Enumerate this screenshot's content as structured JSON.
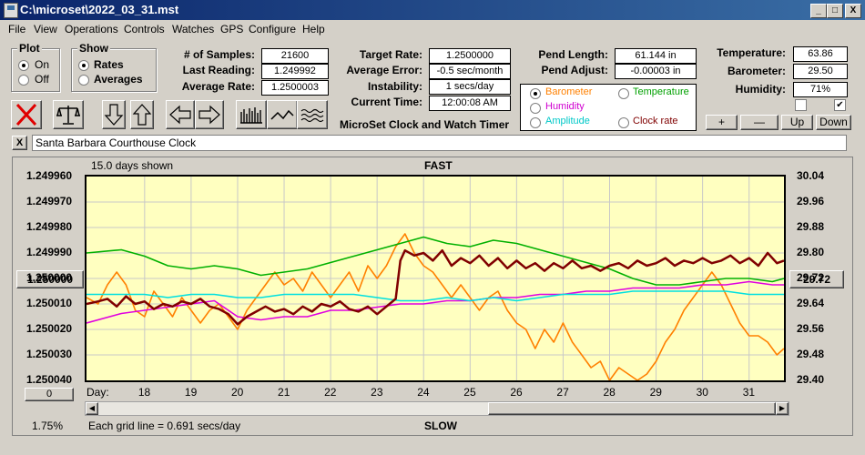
{
  "window": {
    "title": "C:\\microset\\2022_03_31.mst",
    "min": "_",
    "max": "□",
    "close": "X"
  },
  "menu": [
    "File",
    "View",
    "Operations",
    "Controls",
    "Watches",
    "GPS",
    "Configure",
    "Help"
  ],
  "plot_group": {
    "title": "Plot",
    "on": "On",
    "off": "Off",
    "selected": "On"
  },
  "show_group": {
    "title": "Show",
    "rates": "Rates",
    "averages": "Averages",
    "selected": "Rates"
  },
  "stats": {
    "samples_label": "# of Samples:",
    "samples": "21600",
    "last_label": "Last Reading:",
    "last": "1.249992",
    "avg_label": "Average Rate:",
    "avg": "1.2500003",
    "target_label": "Target Rate:",
    "target": "1.2500000",
    "avgerr_label": "Average Error:",
    "avgerr": "-0.5 sec/month",
    "instab_label": "Instability:",
    "instab": "1 secs/day",
    "time_label": "Current Time:",
    "time": "12:00:08 AM",
    "pendlen_label": "Pend Length:",
    "pendlen": "61.144 in",
    "pendadj_label": "Pend Adjust:",
    "pendadj": "-0.00003 in",
    "temp_label": "Temperature:",
    "temp": "63.86",
    "baro_label": "Barometer:",
    "baro": "29.50",
    "hum_label": "Humidity:",
    "hum": "71%"
  },
  "product_title": "MicroSet Clock and Watch Timer",
  "sensor_select": {
    "barometer": "Barometer",
    "temperature": "Temperature",
    "humidity": "Humidity",
    "amplitude": "Amplitude",
    "clockrate": "Clock rate",
    "selected": "barometer"
  },
  "aux_buttons": {
    "plus": "+",
    "minus": "—",
    "up": "Up",
    "down": "Down"
  },
  "checkboxes": {
    "left": false,
    "right": true
  },
  "description": "Santa Barbara Courthouse Clock",
  "close_x": "X",
  "chart_labels": {
    "days_shown": "15.0 days shown",
    "fast": "FAST",
    "slow": "SLOW",
    "day_label": "Day:",
    "grid_note": "Each grid line = 0.691 secs/day",
    "left_btn": "1.250000",
    "right_btn": "29.72",
    "bottom_btn": "0",
    "pct": "1.75%"
  },
  "colors": {
    "barometer": "#ff8000",
    "temperature": "#00b000",
    "humidity": "#e000e0",
    "amplitude": "#00e0e0",
    "rate": "#800000"
  },
  "chart_data": {
    "type": "line",
    "y_left_ticks": [
      "1.249960",
      "1.249970",
      "1.249980",
      "1.249990",
      "1.250000",
      "1.250010",
      "1.250020",
      "1.250030",
      "1.250040"
    ],
    "y_right_ticks": [
      "30.04",
      "29.96",
      "29.88",
      "29.80",
      "29.72",
      "29.64",
      "29.56",
      "29.48",
      "29.40"
    ],
    "x_ticks": [
      "18",
      "19",
      "20",
      "21",
      "22",
      "23",
      "24",
      "25",
      "26",
      "27",
      "28",
      "29",
      "30",
      "31"
    ],
    "ylim_left": [
      1.25004,
      1.24996
    ],
    "ylim_right": [
      29.4,
      30.04
    ],
    "x_range": [
      16.75,
      31.75
    ],
    "series": [
      {
        "name": "Barometer",
        "color": "#ff8000",
        "axis": "right",
        "x": [
          16.75,
          17,
          17.2,
          17.4,
          17.6,
          17.8,
          18,
          18.2,
          18.4,
          18.6,
          18.8,
          19,
          19.2,
          19.4,
          19.6,
          19.8,
          20,
          20.2,
          20.4,
          20.6,
          20.8,
          21,
          21.2,
          21.4,
          21.6,
          21.8,
          22,
          22.2,
          22.4,
          22.6,
          22.8,
          23,
          23.2,
          23.4,
          23.6,
          23.8,
          24,
          24.2,
          24.4,
          24.6,
          24.8,
          25,
          25.2,
          25.4,
          25.6,
          25.8,
          26,
          26.2,
          26.4,
          26.6,
          26.8,
          27,
          27.2,
          27.4,
          27.6,
          27.8,
          28,
          28.2,
          28.4,
          28.6,
          28.8,
          29,
          29.2,
          29.4,
          29.6,
          29.8,
          30,
          30.2,
          30.4,
          30.6,
          30.8,
          31,
          31.2,
          31.4,
          31.6,
          31.75
        ],
        "y": [
          29.66,
          29.64,
          29.7,
          29.74,
          29.7,
          29.62,
          29.6,
          29.68,
          29.64,
          29.6,
          29.66,
          29.62,
          29.58,
          29.62,
          29.64,
          29.6,
          29.56,
          29.62,
          29.66,
          29.7,
          29.74,
          29.7,
          29.72,
          29.68,
          29.74,
          29.7,
          29.66,
          29.7,
          29.74,
          29.68,
          29.76,
          29.72,
          29.76,
          29.82,
          29.86,
          29.8,
          29.76,
          29.74,
          29.7,
          29.66,
          29.7,
          29.66,
          29.62,
          29.66,
          29.68,
          29.62,
          29.58,
          29.56,
          29.5,
          29.56,
          29.52,
          29.58,
          29.52,
          29.48,
          29.44,
          29.46,
          29.4,
          29.44,
          29.42,
          29.4,
          29.42,
          29.46,
          29.52,
          29.56,
          29.62,
          29.66,
          29.7,
          29.74,
          29.7,
          29.64,
          29.58,
          29.54,
          29.54,
          29.52,
          29.48,
          29.5
        ]
      },
      {
        "name": "Temperature",
        "color": "#00b000",
        "axis": "right",
        "x": [
          16.75,
          17.5,
          18,
          18.5,
          19,
          19.5,
          20,
          20.5,
          21,
          21.5,
          22,
          22.5,
          23,
          23.5,
          24,
          24.5,
          25,
          25.5,
          26,
          26.5,
          27,
          27.5,
          28,
          28.5,
          29,
          29.5,
          30,
          30.5,
          31,
          31.5,
          31.75
        ],
        "y": [
          29.8,
          29.81,
          29.79,
          29.76,
          29.75,
          29.76,
          29.75,
          29.73,
          29.74,
          29.75,
          29.77,
          29.79,
          29.81,
          29.83,
          29.85,
          29.83,
          29.82,
          29.84,
          29.83,
          29.81,
          29.79,
          29.77,
          29.75,
          29.72,
          29.7,
          29.7,
          29.71,
          29.72,
          29.72,
          29.71,
          29.72
        ]
      },
      {
        "name": "Humidity",
        "color": "#e000e0",
        "axis": "right",
        "x": [
          16.75,
          17.5,
          18,
          18.5,
          19,
          19.5,
          20,
          20.5,
          21,
          21.5,
          22,
          22.5,
          23,
          23.5,
          24,
          24.5,
          25,
          25.5,
          26,
          26.5,
          27,
          27.5,
          28,
          28.5,
          29,
          29.5,
          30,
          30.5,
          31,
          31.5,
          31.75
        ],
        "y": [
          29.58,
          29.61,
          29.62,
          29.63,
          29.64,
          29.65,
          29.6,
          29.59,
          29.6,
          29.6,
          29.62,
          29.62,
          29.63,
          29.64,
          29.64,
          29.65,
          29.65,
          29.66,
          29.66,
          29.67,
          29.67,
          29.68,
          29.68,
          29.69,
          29.69,
          29.69,
          29.7,
          29.7,
          29.71,
          29.7,
          29.7
        ]
      },
      {
        "name": "Amplitude",
        "color": "#00e0e0",
        "axis": "right",
        "x": [
          16.75,
          17.5,
          18,
          18.5,
          19,
          19.5,
          20,
          20.5,
          21,
          21.5,
          22,
          22.5,
          23,
          23.5,
          24,
          24.5,
          25,
          25.5,
          26,
          26.5,
          27,
          27.5,
          28,
          28.5,
          29,
          29.5,
          30,
          30.5,
          31,
          31.5,
          31.75
        ],
        "y": [
          29.67,
          29.67,
          29.67,
          29.66,
          29.67,
          29.67,
          29.66,
          29.66,
          29.67,
          29.67,
          29.67,
          29.67,
          29.66,
          29.65,
          29.65,
          29.66,
          29.65,
          29.66,
          29.65,
          29.66,
          29.67,
          29.67,
          29.67,
          29.68,
          29.68,
          29.68,
          29.68,
          29.68,
          29.67,
          29.67,
          29.67
        ]
      },
      {
        "name": "Clock rate",
        "color": "#800000",
        "axis": "left",
        "x": [
          16.75,
          17,
          17.2,
          17.4,
          17.6,
          17.8,
          18,
          18.2,
          18.4,
          18.6,
          18.8,
          19,
          19.2,
          19.4,
          19.6,
          19.8,
          20,
          20.2,
          20.4,
          20.6,
          20.8,
          21,
          21.2,
          21.4,
          21.6,
          21.8,
          22,
          22.2,
          22.4,
          22.6,
          22.8,
          23,
          23.2,
          23.4,
          23.5,
          23.6,
          23.8,
          24,
          24.2,
          24.4,
          24.6,
          24.8,
          25,
          25.2,
          25.4,
          25.6,
          25.8,
          26,
          26.2,
          26.4,
          26.6,
          26.8,
          27,
          27.2,
          27.4,
          27.6,
          27.8,
          28,
          28.2,
          28.4,
          28.6,
          28.8,
          29,
          29.2,
          29.4,
          29.6,
          29.8,
          30,
          30.2,
          30.4,
          30.6,
          30.8,
          31,
          31.2,
          31.4,
          31.6,
          31.75
        ],
        "y": [
          1.25001,
          1.250009,
          1.250008,
          1.250011,
          1.250007,
          1.25001,
          1.250009,
          1.250012,
          1.25001,
          1.250011,
          1.250009,
          1.25001,
          1.250008,
          1.250011,
          1.250012,
          1.250014,
          1.250018,
          1.250015,
          1.250013,
          1.250011,
          1.250013,
          1.250012,
          1.250014,
          1.250011,
          1.250013,
          1.25001,
          1.250011,
          1.250009,
          1.250012,
          1.250013,
          1.250011,
          1.250014,
          1.250011,
          1.250008,
          1.249993,
          1.249989,
          1.249991,
          1.24999,
          1.249993,
          1.249989,
          1.249995,
          1.249992,
          1.249994,
          1.249991,
          1.249995,
          1.249992,
          1.249996,
          1.249993,
          1.249996,
          1.249994,
          1.249997,
          1.249994,
          1.249996,
          1.249993,
          1.249996,
          1.249995,
          1.249997,
          1.249995,
          1.249994,
          1.249996,
          1.249993,
          1.249995,
          1.249994,
          1.249992,
          1.249995,
          1.249993,
          1.249994,
          1.249992,
          1.249994,
          1.249993,
          1.249991,
          1.249994,
          1.249992,
          1.249995,
          1.24999,
          1.249994,
          1.249993
        ]
      }
    ]
  }
}
